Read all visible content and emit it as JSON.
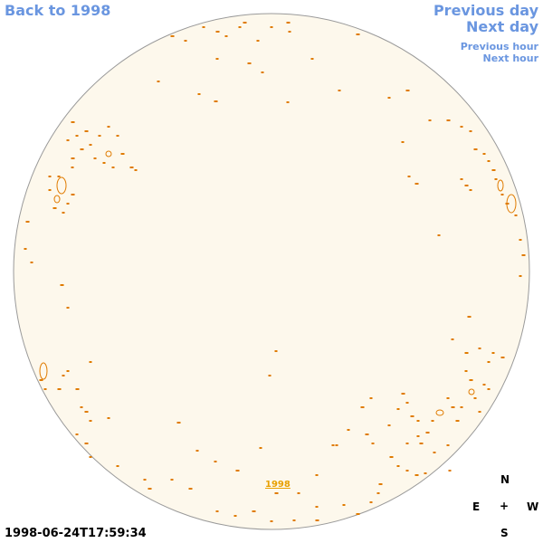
{
  "nav": {
    "back_label": "Back to 1998",
    "prev_day_label": "Previous day",
    "next_day_label": "Next day",
    "prev_hour_label": "Previous hour",
    "next_hour_label": "Next hour"
  },
  "disk": {
    "year_label": "1998",
    "fill_color": "#fdf8ec",
    "contour_color": "#e07b00"
  },
  "compass": {
    "north": "N",
    "south": "S",
    "east": "E",
    "west": "W",
    "center": "+"
  },
  "timestamp": "1998-06-24T17:59:34"
}
